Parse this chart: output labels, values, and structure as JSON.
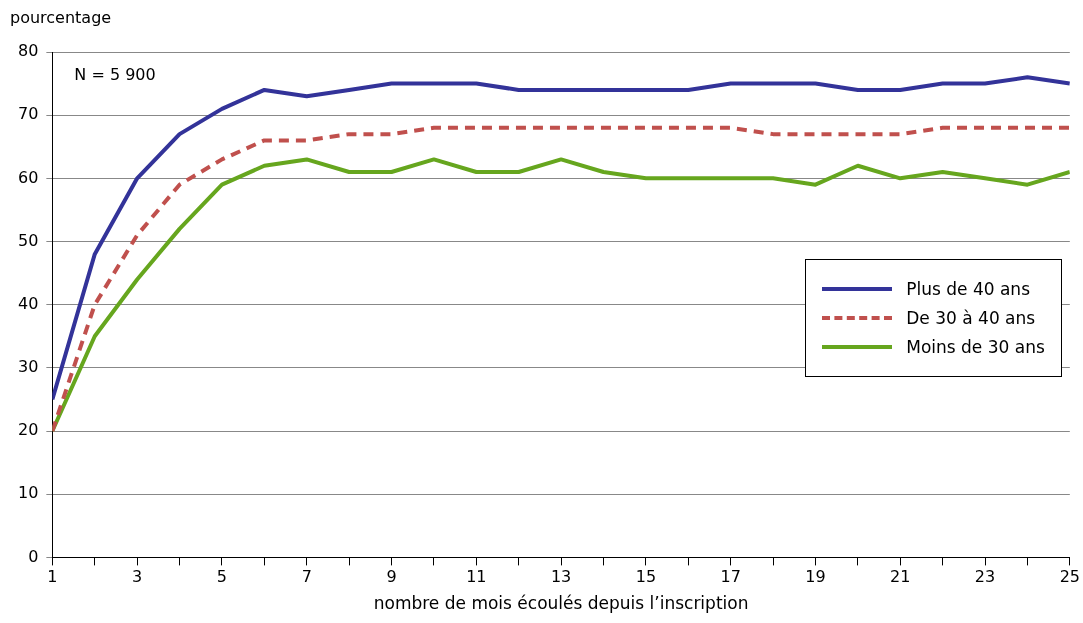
{
  "chart_data": {
    "type": "line",
    "ylabel": "pourcentage",
    "xlabel": "nombre de mois écoulés depuis l’inscription",
    "x": [
      1,
      2,
      3,
      4,
      5,
      6,
      7,
      8,
      9,
      10,
      11,
      12,
      13,
      14,
      15,
      16,
      17,
      18,
      19,
      20,
      21,
      22,
      23,
      24,
      25
    ],
    "xlim": [
      1,
      25
    ],
    "xticks": [
      1,
      {
        "value": 2,
        "label": null
      },
      3,
      {
        "value": 4,
        "label": null
      },
      5,
      {
        "value": 6,
        "label": null
      },
      7,
      {
        "value": 8,
        "label": null
      },
      9,
      {
        "value": 10,
        "label": null
      },
      11,
      {
        "value": 12,
        "label": null
      },
      13,
      {
        "value": 14,
        "label": null
      },
      15,
      {
        "value": 16,
        "label": null
      },
      17,
      {
        "value": 18,
        "label": null
      },
      19,
      {
        "value": 20,
        "label": null
      },
      21,
      {
        "value": 22,
        "label": null
      },
      23,
      {
        "value": 24,
        "label": null
      },
      25
    ],
    "ylim": [
      0,
      80
    ],
    "yticks": [
      0,
      10,
      20,
      30,
      40,
      50,
      60,
      70,
      80
    ],
    "grid": "y",
    "legend": "right",
    "marker": "none",
    "annotations": [
      "N = 5 900"
    ],
    "series": [
      {
        "name": "Plus de 40 ans",
        "color": "#333399",
        "line_style": "solid",
        "values": [
          25,
          48,
          60,
          67,
          71,
          74,
          73,
          74,
          75,
          75,
          75,
          74,
          74,
          74,
          74,
          74,
          75,
          75,
          75,
          74,
          74,
          75,
          75,
          76,
          75
        ]
      },
      {
        "name": "De 30 à 40 ans",
        "color": "#c0504d",
        "line_style": "dashed",
        "values": [
          20,
          40,
          51,
          59,
          63,
          66,
          66,
          67,
          67,
          68,
          68,
          68,
          68,
          68,
          68,
          68,
          68,
          67,
          67,
          67,
          67,
          68,
          68,
          68,
          68
        ]
      },
      {
        "name": "Moins de 30 ans",
        "color": "#66a61e",
        "line_style": "solid",
        "values": [
          20,
          35,
          44,
          52,
          59,
          62,
          63,
          61,
          61,
          63,
          61,
          61,
          63,
          61,
          60,
          60,
          60,
          60,
          59,
          62,
          60,
          61,
          60,
          59,
          61
        ]
      }
    ]
  }
}
